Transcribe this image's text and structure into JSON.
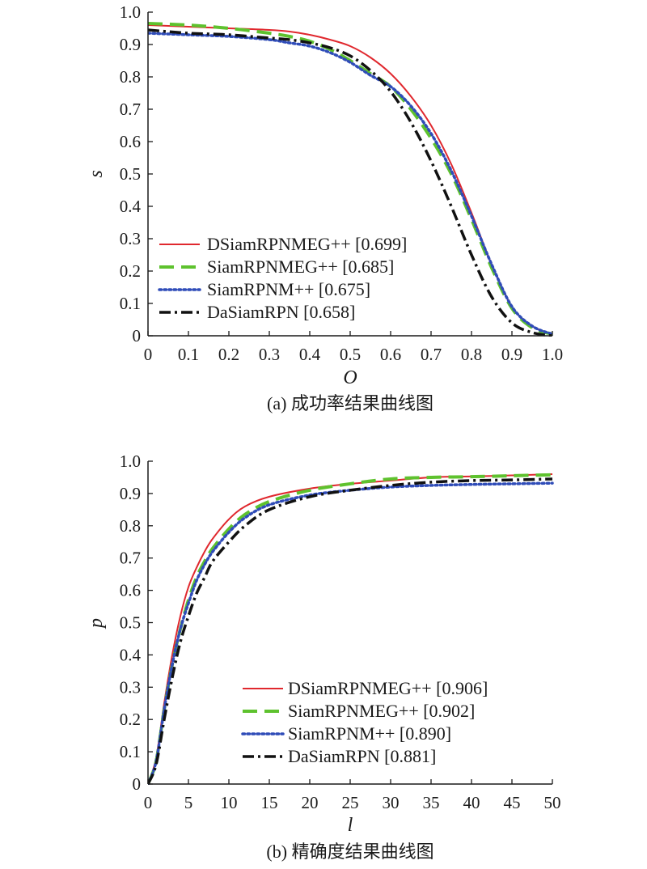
{
  "chart_data": [
    {
      "type": "line",
      "caption": "(a) 成功率结果曲线图",
      "xlabel": "O",
      "ylabel": "s",
      "xlim": [
        0,
        1.0
      ],
      "ylim": [
        0,
        1.0
      ],
      "x_ticks": [
        "0",
        "0.1",
        "0.2",
        "0.3",
        "0.4",
        "0.5",
        "0.6",
        "0.7",
        "0.8",
        "0.9",
        "1.0"
      ],
      "y_ticks": [
        "0",
        "0.1",
        "0.2",
        "0.3",
        "0.4",
        "0.5",
        "0.6",
        "0.7",
        "0.8",
        "0.9",
        "1.0"
      ],
      "legend_position": "bottom-left",
      "grid": false,
      "series": [
        {
          "name": "DSiamRPNMEG++ [0.699]",
          "color": "#e0282e",
          "dash": "solid",
          "x": [
            0,
            0.1,
            0.2,
            0.3,
            0.35,
            0.4,
            0.45,
            0.5,
            0.55,
            0.6,
            0.65,
            0.7,
            0.75,
            0.8,
            0.85,
            0.9,
            0.95,
            1.0
          ],
          "y": [
            0.96,
            0.955,
            0.95,
            0.945,
            0.94,
            0.93,
            0.915,
            0.895,
            0.86,
            0.81,
            0.74,
            0.65,
            0.53,
            0.38,
            0.22,
            0.09,
            0.03,
            0.005
          ]
        },
        {
          "name": "SiamRPNMEG++ [0.685]",
          "color": "#5ec22e",
          "dash": "dashed",
          "x": [
            0,
            0.1,
            0.2,
            0.3,
            0.35,
            0.4,
            0.45,
            0.5,
            0.55,
            0.6,
            0.65,
            0.7,
            0.75,
            0.8,
            0.85,
            0.9,
            0.95,
            1.0
          ],
          "y": [
            0.965,
            0.96,
            0.95,
            0.935,
            0.925,
            0.91,
            0.885,
            0.85,
            0.81,
            0.77,
            0.7,
            0.61,
            0.5,
            0.36,
            0.21,
            0.085,
            0.025,
            0.005
          ]
        },
        {
          "name": "SiamRPNM++ [0.675]",
          "color": "#2f4cb8",
          "dash": "dotted",
          "x": [
            0,
            0.1,
            0.2,
            0.3,
            0.35,
            0.4,
            0.45,
            0.5,
            0.55,
            0.6,
            0.65,
            0.7,
            0.75,
            0.8,
            0.85,
            0.9,
            0.95,
            1.0
          ],
          "y": [
            0.935,
            0.93,
            0.925,
            0.915,
            0.905,
            0.895,
            0.875,
            0.845,
            0.805,
            0.77,
            0.71,
            0.625,
            0.51,
            0.37,
            0.22,
            0.09,
            0.03,
            0.005
          ]
        },
        {
          "name": "DaSiamRPN [0.658]",
          "color": "#111111",
          "dash": "dashdot",
          "x": [
            0,
            0.1,
            0.2,
            0.3,
            0.35,
            0.4,
            0.45,
            0.5,
            0.55,
            0.6,
            0.65,
            0.7,
            0.75,
            0.8,
            0.85,
            0.9,
            0.95,
            1.0
          ],
          "y": [
            0.945,
            0.935,
            0.93,
            0.92,
            0.915,
            0.905,
            0.89,
            0.865,
            0.82,
            0.755,
            0.66,
            0.54,
            0.4,
            0.25,
            0.12,
            0.04,
            0.01,
            0.0
          ]
        }
      ]
    },
    {
      "type": "line",
      "caption": "(b) 精确度结果曲线图",
      "xlabel": "l",
      "ylabel": "p",
      "xlim": [
        0,
        50
      ],
      "ylim": [
        0,
        1.0
      ],
      "x_ticks": [
        "0",
        "5",
        "10",
        "15",
        "20",
        "25",
        "30",
        "35",
        "40",
        "45",
        "50"
      ],
      "y_ticks": [
        "0",
        "0.1",
        "0.2",
        "0.3",
        "0.4",
        "0.5",
        "0.6",
        "0.7",
        "0.8",
        "0.9",
        "1.0"
      ],
      "legend_position": "bottom-right",
      "grid": false,
      "series": [
        {
          "name": "DSiamRPNMEG++ [0.906]",
          "color": "#e0282e",
          "dash": "solid",
          "x": [
            0,
            1,
            2,
            3,
            4,
            5,
            6,
            7,
            8,
            10,
            12,
            15,
            20,
            25,
            30,
            35,
            40,
            45,
            50
          ],
          "y": [
            0,
            0.08,
            0.25,
            0.4,
            0.52,
            0.61,
            0.67,
            0.72,
            0.76,
            0.82,
            0.86,
            0.89,
            0.915,
            0.93,
            0.94,
            0.95,
            0.953,
            0.956,
            0.96
          ]
        },
        {
          "name": "SiamRPNMEG++ [0.902]",
          "color": "#5ec22e",
          "dash": "dashed",
          "x": [
            0,
            1,
            2,
            3,
            4,
            5,
            6,
            7,
            8,
            10,
            12,
            15,
            20,
            25,
            30,
            35,
            40,
            45,
            50
          ],
          "y": [
            0,
            0.07,
            0.23,
            0.37,
            0.48,
            0.57,
            0.64,
            0.69,
            0.73,
            0.79,
            0.835,
            0.875,
            0.91,
            0.93,
            0.945,
            0.95,
            0.952,
            0.955,
            0.958
          ]
        },
        {
          "name": "SiamRPNM++ [0.890]",
          "color": "#2f4cb8",
          "dash": "dotted",
          "x": [
            0,
            1,
            2,
            3,
            4,
            5,
            6,
            7,
            8,
            10,
            12,
            15,
            20,
            25,
            30,
            35,
            40,
            45,
            50
          ],
          "y": [
            0,
            0.07,
            0.23,
            0.37,
            0.48,
            0.56,
            0.63,
            0.68,
            0.72,
            0.78,
            0.825,
            0.865,
            0.895,
            0.91,
            0.92,
            0.925,
            0.928,
            0.93,
            0.932
          ]
        },
        {
          "name": "DaSiamRPN [0.881]",
          "color": "#111111",
          "dash": "dashdot",
          "x": [
            0,
            1,
            2,
            3,
            4,
            5,
            6,
            7,
            8,
            10,
            12,
            15,
            20,
            25,
            30,
            35,
            40,
            45,
            50
          ],
          "y": [
            0,
            0.06,
            0.2,
            0.33,
            0.44,
            0.52,
            0.59,
            0.64,
            0.69,
            0.75,
            0.8,
            0.85,
            0.89,
            0.91,
            0.925,
            0.935,
            0.94,
            0.942,
            0.945
          ]
        }
      ]
    }
  ]
}
